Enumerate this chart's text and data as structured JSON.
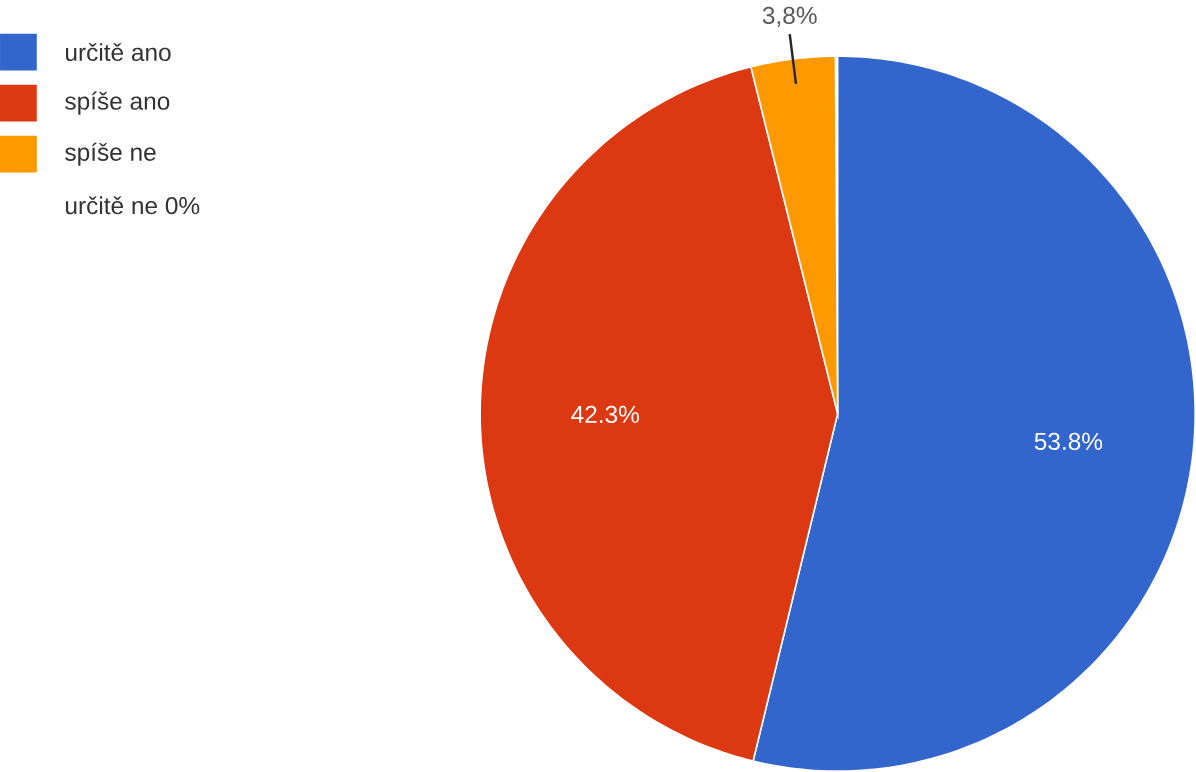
{
  "chart_data": {
    "type": "pie",
    "categories": [
      "určitě ano",
      "spíše ano",
      "spíše ne"
    ],
    "values": [
      53.8,
      42.3,
      3.8
    ],
    "colors": [
      "#3366cc",
      "#dc3912",
      "#ff9900"
    ],
    "value_labels": [
      "53.8%",
      "42.3%",
      "3,8%"
    ],
    "legend": "top left",
    "annotations": [
      "určitě ne 0%"
    ]
  }
}
